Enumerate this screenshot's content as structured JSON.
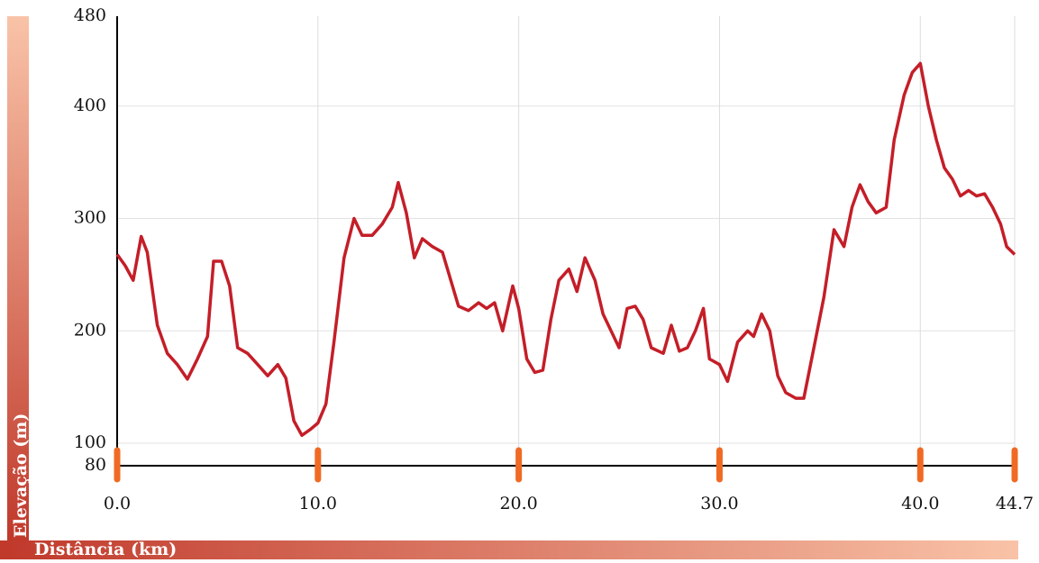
{
  "chart_data": {
    "type": "line",
    "x_label": "Distância (km)",
    "y_label": "Elevação (m)",
    "series": [
      {
        "color": "#c41e28",
        "x": [
          0,
          0.4,
          0.8,
          1.2,
          1.5,
          2,
          2.5,
          3,
          3.5,
          4,
          4.5,
          4.8,
          5.2,
          5.6,
          6,
          6.5,
          7,
          7.5,
          8,
          8.4,
          8.8,
          9.2,
          9.6,
          10,
          10.4,
          10.8,
          11.3,
          11.8,
          12.2,
          12.7,
          13.2,
          13.7,
          14,
          14.4,
          14.8,
          15.2,
          15.7,
          16.2,
          16.7,
          17,
          17.5,
          18,
          18.4,
          18.8,
          19.2,
          19.7,
          20,
          20.4,
          20.8,
          21.2,
          21.6,
          22,
          22.5,
          22.9,
          23.3,
          23.8,
          24.2,
          24.6,
          25,
          25.4,
          25.8,
          26.2,
          26.6,
          27.2,
          27.6,
          28,
          28.4,
          28.8,
          29.2,
          29.5,
          30,
          30.4,
          30.9,
          31.4,
          31.7,
          32.1,
          32.5,
          32.9,
          33.3,
          33.8,
          34.2,
          34.7,
          35.2,
          35.7,
          36.2,
          36.6,
          37,
          37.4,
          37.8,
          38.3,
          38.7,
          39.2,
          39.6,
          40,
          40.4,
          40.8,
          41.2,
          41.6,
          42,
          42.4,
          42.8,
          43.2,
          43.6,
          44,
          44.3,
          44.7
        ],
        "values": [
          268,
          258,
          245,
          284,
          270,
          205,
          180,
          170,
          157,
          175,
          195,
          262,
          262,
          240,
          185,
          180,
          170,
          160,
          170,
          158,
          120,
          107,
          112,
          118,
          135,
          190,
          265,
          300,
          285,
          285,
          295,
          310,
          332,
          305,
          265,
          282,
          275,
          270,
          240,
          222,
          218,
          225,
          220,
          225,
          200,
          240,
          220,
          175,
          163,
          165,
          210,
          245,
          255,
          235,
          265,
          245,
          215,
          200,
          185,
          220,
          222,
          210,
          185,
          180,
          205,
          182,
          185,
          200,
          220,
          175,
          170,
          155,
          190,
          200,
          195,
          215,
          200,
          160,
          145,
          140,
          140,
          185,
          230,
          290,
          275,
          310,
          330,
          315,
          305,
          310,
          370,
          410,
          430,
          438,
          400,
          370,
          345,
          335,
          320,
          325,
          320,
          322,
          310,
          295,
          275,
          268
        ]
      }
    ],
    "xlim": [
      0,
      44.7
    ],
    "xticks": [
      {
        "value": 0,
        "label": "0.0"
      },
      {
        "value": 10,
        "label": "10.0"
      },
      {
        "value": 20,
        "label": "20.0"
      },
      {
        "value": 30,
        "label": "30.0"
      },
      {
        "value": 40,
        "label": "40.0"
      },
      {
        "value": 44.7,
        "label": "44.7"
      }
    ],
    "ylim": [
      80,
      480
    ],
    "yticks": [
      80,
      100,
      200,
      300,
      400,
      480
    ],
    "grid": true
  }
}
